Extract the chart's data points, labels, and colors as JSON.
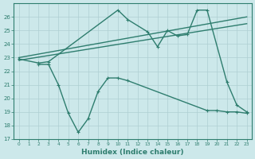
{
  "line1_x": [
    0,
    23
  ],
  "line1_y": [
    23.0,
    26.0
  ],
  "line2_x": [
    0,
    23
  ],
  "line2_y": [
    22.8,
    25.5
  ],
  "line3_x": [
    0,
    2,
    3,
    10,
    11,
    13,
    14,
    15,
    16,
    17,
    18,
    19,
    21,
    22,
    23
  ],
  "line3_y": [
    22.9,
    22.6,
    22.7,
    26.5,
    25.8,
    24.9,
    23.8,
    25.0,
    24.6,
    24.7,
    26.5,
    26.5,
    21.2,
    19.5,
    19.0
  ],
  "line4_x": [
    2,
    3,
    4,
    5,
    6,
    7,
    8,
    9,
    10,
    11,
    19,
    20,
    21,
    22,
    23
  ],
  "line4_y": [
    22.5,
    22.5,
    21.0,
    18.9,
    17.5,
    18.5,
    20.5,
    21.5,
    21.5,
    21.3,
    19.1,
    19.1,
    19.0,
    19.0,
    18.9
  ],
  "line_color": "#2e7d6e",
  "bg_color": "#cce8ea",
  "grid_color": "#aecfd2",
  "xlabel": "Humidex (Indice chaleur)",
  "ylim": [
    17,
    27
  ],
  "xlim": [
    -0.5,
    23.5
  ],
  "yticks": [
    17,
    18,
    19,
    20,
    21,
    22,
    23,
    24,
    25,
    26
  ],
  "xticks": [
    0,
    1,
    2,
    3,
    4,
    5,
    6,
    7,
    8,
    9,
    10,
    11,
    12,
    13,
    14,
    15,
    16,
    17,
    18,
    19,
    20,
    21,
    22,
    23
  ]
}
